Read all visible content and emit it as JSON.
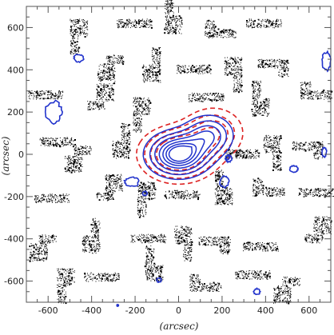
{
  "chart_data": {
    "type": "contour",
    "title": "",
    "xlabel": "(arcsec)",
    "ylabel": "(arcsec)",
    "xlim": [
      700,
      -700
    ],
    "ylim": [
      -700,
      700
    ],
    "xticks": [
      600,
      400,
      200,
      0,
      -200,
      -400,
      -600
    ],
    "xtick_labels": [
      "-600",
      "-400",
      "-200",
      "0",
      "200",
      "400",
      "600"
    ],
    "yticks": [
      -600,
      -400,
      -200,
      0,
      200,
      400,
      600
    ],
    "ytick_labels": [
      "-600",
      "-400",
      "-200",
      "0",
      "200",
      "400",
      "600"
    ],
    "colors": {
      "optical_pointings": "#000000",
      "blue_contours": "#2233cc",
      "red_contours": "#dd2222",
      "axes": "#555555"
    },
    "optical_pointings": [
      {
        "ra": 460,
        "dec": 600
      },
      {
        "ra": 160,
        "dec": 600
      },
      {
        "ra": 20,
        "dec": 610
      },
      {
        "ra": -160,
        "dec": 590
      },
      {
        "ra": -350,
        "dec": 600
      },
      {
        "ra": 290,
        "dec": 430
      },
      {
        "ra": 120,
        "dec": 380
      },
      {
        "ra": -30,
        "dec": 420
      },
      {
        "ra": -250,
        "dec": 420
      },
      {
        "ra": -470,
        "dec": 410
      },
      {
        "ra": 570,
        "dec": 300
      },
      {
        "ra": 380,
        "dec": 250
      },
      {
        "ra": 170,
        "dec": 230
      },
      {
        "ra": -170,
        "dec": 250
      },
      {
        "ra": -380,
        "dec": 220
      },
      {
        "ra": -600,
        "dec": 300
      },
      {
        "ra": 600,
        "dec": 40
      },
      {
        "ra": 440,
        "dec": 0
      },
      {
        "ra": 260,
        "dec": 20
      },
      {
        "ra": -250,
        "dec": 20
      },
      {
        "ra": -430,
        "dec": 50
      },
      {
        "ra": -630,
        "dec": 20
      },
      {
        "ra": 540,
        "dec": -190
      },
      {
        "ra": 340,
        "dec": -180
      },
      {
        "ra": 150,
        "dec": -170
      },
      {
        "ra": -60,
        "dec": -210
      },
      {
        "ra": -210,
        "dec": -200
      },
      {
        "ra": -380,
        "dec": -160
      },
      {
        "ra": -590,
        "dec": -200
      },
      {
        "ra": 600,
        "dec": -420
      },
      {
        "ra": 400,
        "dec": -430
      },
      {
        "ra": 180,
        "dec": -380
      },
      {
        "ra": -20,
        "dec": -380
      },
      {
        "ra": -200,
        "dec": -430
      },
      {
        "ra": -420,
        "dec": -420
      },
      {
        "ra": -620,
        "dec": -380
      },
      {
        "ra": 520,
        "dec": -580
      },
      {
        "ra": 310,
        "dec": -600
      },
      {
        "ra": 110,
        "dec": -560
      },
      {
        "ra": -90,
        "dec": -610
      },
      {
        "ra": -300,
        "dec": -590
      },
      {
        "ra": -520,
        "dec": -620
      }
    ],
    "central_contours": {
      "blue_levels": [
        0.16,
        0.3,
        0.44,
        0.58,
        0.7,
        0.8,
        0.88
      ],
      "red_levels": [
        0.14,
        0.28,
        0.42,
        0.58
      ]
    },
    "blue_blobs": [
      {
        "x": 575,
        "y": 200,
        "rx": 36,
        "ry": 50
      },
      {
        "x": 460,
        "y": 455,
        "rx": 22,
        "ry": 18
      },
      {
        "x": 215,
        "y": -130,
        "rx": 32,
        "ry": 22
      },
      {
        "x": -210,
        "y": -130,
        "rx": 20,
        "ry": 26
      },
      {
        "x": -225,
        "y": -15,
        "rx": 8,
        "ry": 10
      },
      {
        "x": -230,
        "y": -20,
        "rx": 14,
        "ry": 16
      },
      {
        "x": 155,
        "y": -185,
        "rx": 10,
        "ry": 10
      },
      {
        "x": -530,
        "y": -70,
        "rx": 18,
        "ry": 16
      },
      {
        "x": -670,
        "y": 10,
        "rx": 10,
        "ry": 22
      },
      {
        "x": 90,
        "y": -595,
        "rx": 10,
        "ry": 10
      },
      {
        "x": -360,
        "y": -650,
        "rx": 14,
        "ry": 14
      },
      {
        "x": -680,
        "y": 440,
        "rx": 20,
        "ry": 42
      },
      {
        "x": 280,
        "y": -715,
        "rx": 4,
        "ry": 4
      }
    ]
  }
}
